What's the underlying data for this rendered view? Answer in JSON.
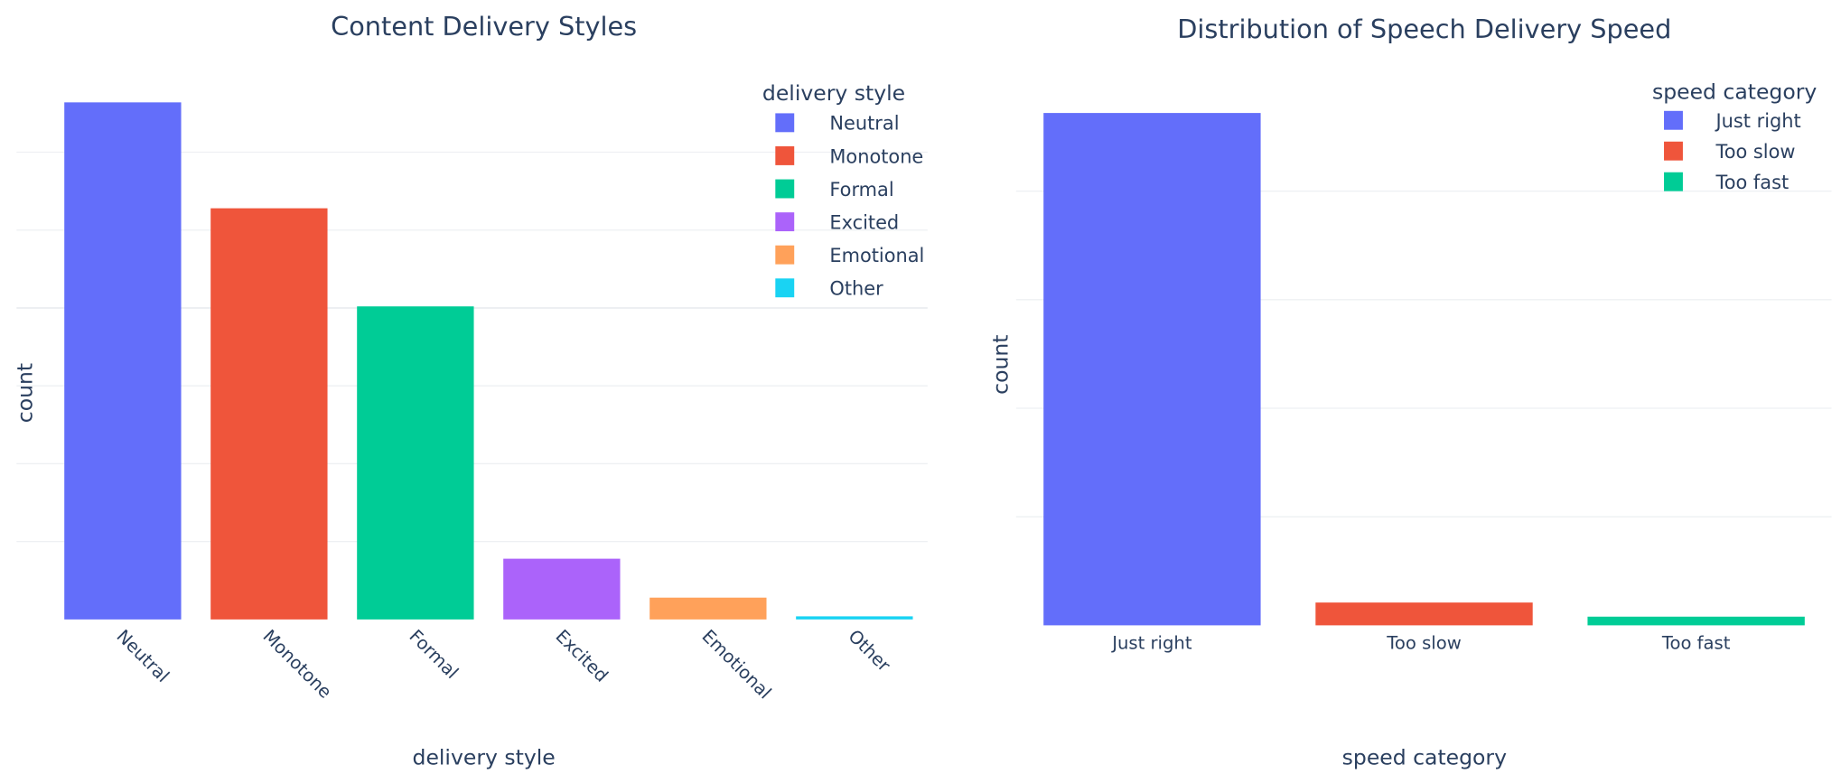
{
  "chart_data": [
    {
      "type": "bar",
      "title": "Content Delivery Styles",
      "xlabel": "delivery style",
      "ylabel": "count",
      "categories": [
        "Neutral",
        "Monotone",
        "Formal",
        "Excited",
        "Emotional",
        "Other"
      ],
      "values": [
        332,
        264,
        201,
        39,
        14,
        2
      ],
      "colors": [
        "#636efa",
        "#EF553B",
        "#00cc96",
        "#ab63fa",
        "#FFA15A",
        "#19d3f3"
      ],
      "legend": {
        "title": "delivery style",
        "placement": "top-right",
        "entries": [
          "Neutral",
          "Monotone",
          "Formal",
          "Excited",
          "Emotional",
          "Other"
        ]
      },
      "grid": true,
      "y_tick_labels_shown": false
    },
    {
      "type": "bar",
      "title": "Distribution of Speech Delivery Speed",
      "xlabel": "speed category",
      "ylabel": "count",
      "categories": [
        "Just right",
        "Too slow",
        "Too fast"
      ],
      "values": [
        472,
        21,
        8
      ],
      "colors": [
        "#636efa",
        "#EF553B",
        "#00cc96"
      ],
      "legend": {
        "title": "speed category",
        "placement": "top-right",
        "entries": [
          "Just right",
          "Too slow",
          "Too fast"
        ]
      },
      "grid": true,
      "y_tick_labels_shown": false
    }
  ]
}
